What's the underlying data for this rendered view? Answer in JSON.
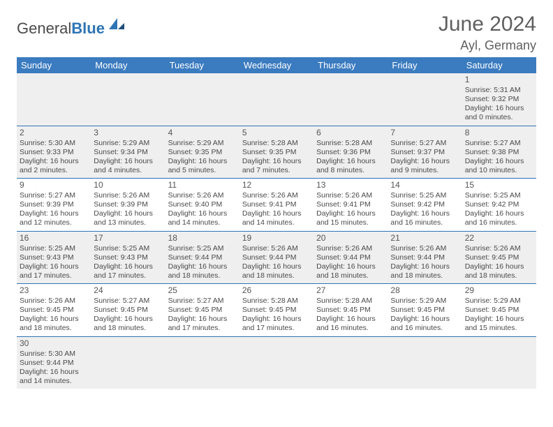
{
  "brand": {
    "part1": "General",
    "part2": "Blue"
  },
  "title": "June 2024",
  "location": "Ayl, Germany",
  "colors": {
    "header_bg": "#3b7bbf",
    "header_fg": "#ffffff",
    "rule": "#2e74b5",
    "alt_bg": "#efefef",
    "text": "#4a4a4a",
    "title": "#5f5f5f"
  },
  "dayHeaders": [
    "Sunday",
    "Monday",
    "Tuesday",
    "Wednesday",
    "Thursday",
    "Friday",
    "Saturday"
  ],
  "weeks": [
    [
      null,
      null,
      null,
      null,
      null,
      null,
      {
        "n": "1",
        "sr": "Sunrise: 5:31 AM",
        "ss": "Sunset: 9:32 PM",
        "d1": "Daylight: 16 hours",
        "d2": "and 0 minutes."
      }
    ],
    [
      {
        "n": "2",
        "sr": "Sunrise: 5:30 AM",
        "ss": "Sunset: 9:33 PM",
        "d1": "Daylight: 16 hours",
        "d2": "and 2 minutes."
      },
      {
        "n": "3",
        "sr": "Sunrise: 5:29 AM",
        "ss": "Sunset: 9:34 PM",
        "d1": "Daylight: 16 hours",
        "d2": "and 4 minutes."
      },
      {
        "n": "4",
        "sr": "Sunrise: 5:29 AM",
        "ss": "Sunset: 9:35 PM",
        "d1": "Daylight: 16 hours",
        "d2": "and 5 minutes."
      },
      {
        "n": "5",
        "sr": "Sunrise: 5:28 AM",
        "ss": "Sunset: 9:35 PM",
        "d1": "Daylight: 16 hours",
        "d2": "and 7 minutes."
      },
      {
        "n": "6",
        "sr": "Sunrise: 5:28 AM",
        "ss": "Sunset: 9:36 PM",
        "d1": "Daylight: 16 hours",
        "d2": "and 8 minutes."
      },
      {
        "n": "7",
        "sr": "Sunrise: 5:27 AM",
        "ss": "Sunset: 9:37 PM",
        "d1": "Daylight: 16 hours",
        "d2": "and 9 minutes."
      },
      {
        "n": "8",
        "sr": "Sunrise: 5:27 AM",
        "ss": "Sunset: 9:38 PM",
        "d1": "Daylight: 16 hours",
        "d2": "and 10 minutes."
      }
    ],
    [
      {
        "n": "9",
        "sr": "Sunrise: 5:27 AM",
        "ss": "Sunset: 9:39 PM",
        "d1": "Daylight: 16 hours",
        "d2": "and 12 minutes."
      },
      {
        "n": "10",
        "sr": "Sunrise: 5:26 AM",
        "ss": "Sunset: 9:39 PM",
        "d1": "Daylight: 16 hours",
        "d2": "and 13 minutes."
      },
      {
        "n": "11",
        "sr": "Sunrise: 5:26 AM",
        "ss": "Sunset: 9:40 PM",
        "d1": "Daylight: 16 hours",
        "d2": "and 14 minutes."
      },
      {
        "n": "12",
        "sr": "Sunrise: 5:26 AM",
        "ss": "Sunset: 9:41 PM",
        "d1": "Daylight: 16 hours",
        "d2": "and 14 minutes."
      },
      {
        "n": "13",
        "sr": "Sunrise: 5:26 AM",
        "ss": "Sunset: 9:41 PM",
        "d1": "Daylight: 16 hours",
        "d2": "and 15 minutes."
      },
      {
        "n": "14",
        "sr": "Sunrise: 5:25 AM",
        "ss": "Sunset: 9:42 PM",
        "d1": "Daylight: 16 hours",
        "d2": "and 16 minutes."
      },
      {
        "n": "15",
        "sr": "Sunrise: 5:25 AM",
        "ss": "Sunset: 9:42 PM",
        "d1": "Daylight: 16 hours",
        "d2": "and 16 minutes."
      }
    ],
    [
      {
        "n": "16",
        "sr": "Sunrise: 5:25 AM",
        "ss": "Sunset: 9:43 PM",
        "d1": "Daylight: 16 hours",
        "d2": "and 17 minutes."
      },
      {
        "n": "17",
        "sr": "Sunrise: 5:25 AM",
        "ss": "Sunset: 9:43 PM",
        "d1": "Daylight: 16 hours",
        "d2": "and 17 minutes."
      },
      {
        "n": "18",
        "sr": "Sunrise: 5:25 AM",
        "ss": "Sunset: 9:44 PM",
        "d1": "Daylight: 16 hours",
        "d2": "and 18 minutes."
      },
      {
        "n": "19",
        "sr": "Sunrise: 5:26 AM",
        "ss": "Sunset: 9:44 PM",
        "d1": "Daylight: 16 hours",
        "d2": "and 18 minutes."
      },
      {
        "n": "20",
        "sr": "Sunrise: 5:26 AM",
        "ss": "Sunset: 9:44 PM",
        "d1": "Daylight: 16 hours",
        "d2": "and 18 minutes."
      },
      {
        "n": "21",
        "sr": "Sunrise: 5:26 AM",
        "ss": "Sunset: 9:44 PM",
        "d1": "Daylight: 16 hours",
        "d2": "and 18 minutes."
      },
      {
        "n": "22",
        "sr": "Sunrise: 5:26 AM",
        "ss": "Sunset: 9:45 PM",
        "d1": "Daylight: 16 hours",
        "d2": "and 18 minutes."
      }
    ],
    [
      {
        "n": "23",
        "sr": "Sunrise: 5:26 AM",
        "ss": "Sunset: 9:45 PM",
        "d1": "Daylight: 16 hours",
        "d2": "and 18 minutes."
      },
      {
        "n": "24",
        "sr": "Sunrise: 5:27 AM",
        "ss": "Sunset: 9:45 PM",
        "d1": "Daylight: 16 hours",
        "d2": "and 18 minutes."
      },
      {
        "n": "25",
        "sr": "Sunrise: 5:27 AM",
        "ss": "Sunset: 9:45 PM",
        "d1": "Daylight: 16 hours",
        "d2": "and 17 minutes."
      },
      {
        "n": "26",
        "sr": "Sunrise: 5:28 AM",
        "ss": "Sunset: 9:45 PM",
        "d1": "Daylight: 16 hours",
        "d2": "and 17 minutes."
      },
      {
        "n": "27",
        "sr": "Sunrise: 5:28 AM",
        "ss": "Sunset: 9:45 PM",
        "d1": "Daylight: 16 hours",
        "d2": "and 16 minutes."
      },
      {
        "n": "28",
        "sr": "Sunrise: 5:29 AM",
        "ss": "Sunset: 9:45 PM",
        "d1": "Daylight: 16 hours",
        "d2": "and 16 minutes."
      },
      {
        "n": "29",
        "sr": "Sunrise: 5:29 AM",
        "ss": "Sunset: 9:45 PM",
        "d1": "Daylight: 16 hours",
        "d2": "and 15 minutes."
      }
    ],
    [
      {
        "n": "30",
        "sr": "Sunrise: 5:30 AM",
        "ss": "Sunset: 9:44 PM",
        "d1": "Daylight: 16 hours",
        "d2": "and 14 minutes."
      },
      null,
      null,
      null,
      null,
      null,
      null
    ]
  ]
}
